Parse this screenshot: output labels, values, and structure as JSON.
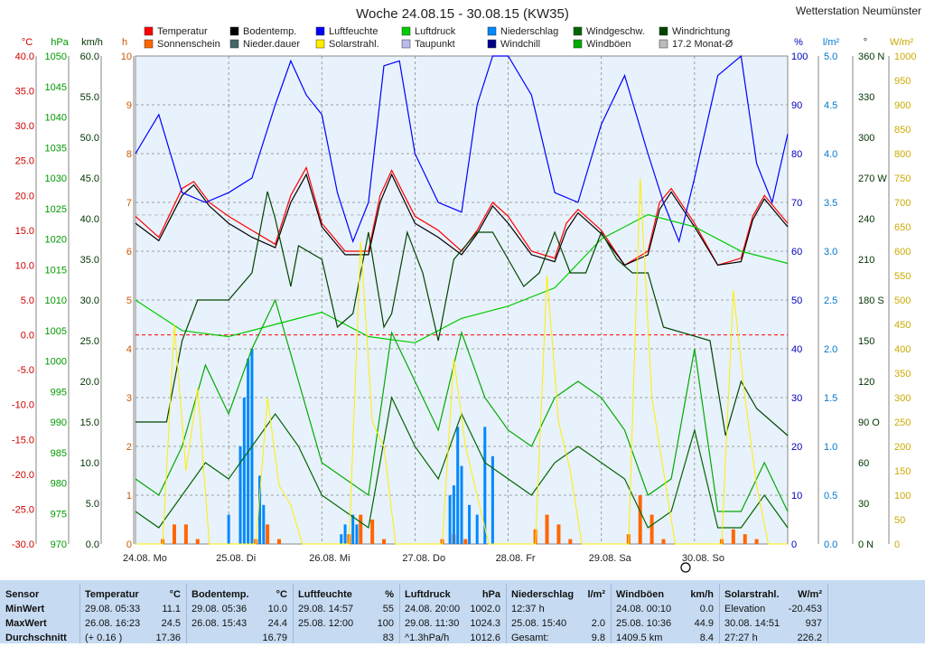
{
  "title": "Woche 24.08.15 - 30.08.15 (KW35)",
  "station": "Wetterstation Neumünster",
  "legend": [
    {
      "label": "Temperatur",
      "color": "#ff0000"
    },
    {
      "label": "Bodentemp.",
      "color": "#000000"
    },
    {
      "label": "Luftfeuchte",
      "color": "#0000ff"
    },
    {
      "label": "Luftdruck",
      "color": "#00cc00"
    },
    {
      "label": "Niederschlag",
      "color": "#0088ff"
    },
    {
      "label": "Windgeschw.",
      "color": "#006600"
    },
    {
      "label": "Windrichtung",
      "color": "#004400"
    },
    {
      "label": "Sonnenschein",
      "color": "#ff6600"
    },
    {
      "label": "Nieder.dauer",
      "color": "#446666"
    },
    {
      "label": "Solarstrahl.",
      "color": "#ffee00"
    },
    {
      "label": "Taupunkt",
      "color": "#bbbbee"
    },
    {
      "label": "Windchill",
      "color": "#000088"
    },
    {
      "label": "Windböen",
      "color": "#00aa00"
    },
    {
      "label": "17.2 Monat-Ø",
      "color": "#bbbbbb"
    }
  ],
  "axes": {
    "temp": {
      "unit": "°C",
      "ticks": [
        "40.0",
        "35.0",
        "30.0",
        "25.0",
        "20.0",
        "15.0",
        "10.0",
        "5.0",
        "0.0",
        "-5.0",
        "-10.0",
        "-15.0",
        "-20.0",
        "-25.0",
        "-30.0"
      ],
      "color": "#d00000"
    },
    "press": {
      "unit": "hPa",
      "ticks": [
        "1050",
        "1045",
        "1040",
        "1035",
        "1030",
        "1025",
        "1020",
        "1015",
        "1010",
        "1005",
        "1000",
        "995",
        "990",
        "985",
        "980",
        "975",
        "970"
      ],
      "color": "#009900"
    },
    "wind": {
      "unit": "km/h",
      "ticks": [
        "60.0",
        "55.0",
        "50.0",
        "45.0",
        "40.0",
        "35.0",
        "30.0",
        "25.0",
        "20.0",
        "15.0",
        "10.0",
        "5.0",
        "0.0"
      ],
      "color": "#003300"
    },
    "hours": {
      "unit": "h",
      "ticks": [
        "10",
        "9",
        "8",
        "7",
        "6",
        "5",
        "4",
        "3",
        "2",
        "1",
        "0"
      ],
      "color": "#cc5500"
    },
    "hum": {
      "unit": "%",
      "ticks": [
        "100",
        "90",
        "80",
        "70",
        "60",
        "50",
        "40",
        "30",
        "20",
        "10",
        "0"
      ],
      "color": "#0000bb"
    },
    "rain": {
      "unit": "l/m²",
      "ticks": [
        "5.0",
        "4.5",
        "4.0",
        "3.5",
        "3.0",
        "2.5",
        "2.0",
        "1.5",
        "1.0",
        "0.5",
        "0.0"
      ],
      "color": "#0077cc"
    },
    "dir": {
      "unit": "°",
      "ticks": [
        "360 N",
        "330",
        "300",
        "270 W",
        "240",
        "210",
        "180 S",
        "150",
        "120",
        "90 O",
        "60",
        "30",
        "0 N"
      ],
      "color": "#003300"
    },
    "solar": {
      "unit": "W/m²",
      "ticks": [
        "1000",
        "950",
        "900",
        "850",
        "800",
        "750",
        "700",
        "650",
        "600",
        "550",
        "500",
        "450",
        "400",
        "350",
        "300",
        "250",
        "200",
        "150",
        "100",
        "50",
        "0"
      ],
      "color": "#ccaa00"
    }
  },
  "x_labels": [
    "24.08. Mo",
    "25.08. Di",
    "26.08. Mi",
    "27.08. Do",
    "28.08. Fr",
    "29.08. Sa",
    "30.08. So"
  ],
  "chart_data": {
    "type": "line",
    "title": "Woche 24.08.15 - 30.08.15 (KW35)",
    "x_unit": "hours since 24.08. 00:00",
    "xlim": [
      0,
      168
    ],
    "series": [
      {
        "name": "Temperatur",
        "axis": "°C",
        "x": [
          0,
          6,
          12,
          15,
          19,
          24,
          30,
          36,
          40,
          44,
          48,
          54,
          60,
          63,
          66,
          72,
          78,
          84,
          88,
          92,
          96,
          102,
          108,
          111,
          114,
          120,
          126,
          132,
          135,
          138,
          144,
          150,
          156,
          159,
          162,
          168
        ],
        "y": [
          17,
          14,
          21,
          22,
          19,
          17,
          15,
          13,
          20,
          24,
          16,
          12,
          12,
          20,
          23.6,
          17,
          15,
          12,
          15,
          19,
          17,
          12,
          11,
          16,
          18,
          15,
          10,
          12,
          19,
          21,
          16,
          10,
          11,
          17,
          20,
          16
        ]
      },
      {
        "name": "Bodentemp.",
        "axis": "°C",
        "x": [
          0,
          6,
          12,
          15,
          19,
          24,
          30,
          36,
          40,
          44,
          48,
          54,
          60,
          63,
          66,
          72,
          78,
          84,
          88,
          92,
          96,
          102,
          108,
          111,
          114,
          120,
          126,
          132,
          135,
          138,
          144,
          150,
          156,
          159,
          162,
          168
        ],
        "y": [
          16,
          13.5,
          20,
          21.5,
          18.5,
          16,
          14,
          12.5,
          19,
          23,
          15.5,
          11.5,
          11.5,
          19,
          23,
          16,
          14,
          11.5,
          14.5,
          18.5,
          16,
          11.5,
          10.5,
          15,
          17.5,
          14.5,
          10,
          11.5,
          18,
          20.5,
          15.5,
          10,
          10.5,
          16.5,
          19.5,
          15.5
        ]
      },
      {
        "name": "Luftfeuchte",
        "axis": "%",
        "x": [
          0,
          6,
          12,
          18,
          24,
          30,
          36,
          40,
          44,
          48,
          52,
          56,
          60,
          64,
          68,
          72,
          78,
          84,
          88,
          92,
          96,
          102,
          108,
          114,
          120,
          126,
          132,
          136,
          140,
          144,
          150,
          156,
          160,
          164,
          168
        ],
        "y": [
          80,
          88,
          72,
          70,
          72,
          75,
          90,
          99,
          92,
          88,
          72,
          62,
          70,
          98,
          99,
          80,
          70,
          68,
          90,
          100,
          100,
          92,
          72,
          70,
          86,
          96,
          80,
          70,
          62,
          75,
          96,
          100,
          78,
          70,
          84
        ]
      },
      {
        "name": "Luftdruck",
        "axis": "hPa",
        "x": [
          0,
          12,
          24,
          36,
          48,
          60,
          72,
          84,
          96,
          108,
          120,
          126,
          132,
          144,
          156,
          168
        ],
        "y": [
          1010,
          1005,
          1004,
          1006,
          1008,
          1004,
          1003,
          1007,
          1009,
          1012,
          1020,
          1022,
          1024,
          1022,
          1018,
          1016
        ]
      },
      {
        "name": "Windgeschw.",
        "axis": "km/h",
        "x": [
          0,
          6,
          12,
          18,
          24,
          30,
          36,
          42,
          48,
          54,
          60,
          66,
          72,
          78,
          84,
          90,
          96,
          102,
          108,
          114,
          120,
          126,
          132,
          138,
          144,
          150,
          156,
          162,
          168
        ],
        "y": [
          4,
          2,
          6,
          10,
          8,
          12,
          16,
          12,
          6,
          4,
          2,
          18,
          12,
          8,
          16,
          10,
          8,
          6,
          10,
          12,
          10,
          8,
          2,
          4,
          14,
          2,
          2,
          6,
          2
        ]
      },
      {
        "name": "Windböen",
        "axis": "km/h",
        "x": [
          0,
          6,
          12,
          18,
          24,
          30,
          36,
          42,
          48,
          54,
          60,
          66,
          72,
          78,
          84,
          90,
          96,
          102,
          108,
          114,
          120,
          126,
          132,
          138,
          144,
          150,
          156,
          162,
          168
        ],
        "y": [
          8,
          6,
          12,
          22,
          16,
          24,
          30,
          20,
          10,
          8,
          6,
          26,
          20,
          14,
          26,
          18,
          14,
          12,
          18,
          20,
          18,
          14,
          6,
          8,
          24,
          4,
          4,
          10,
          4
        ]
      },
      {
        "name": "Windrichtung",
        "axis": "°",
        "x": [
          0,
          8,
          12,
          16,
          20,
          24,
          30,
          34,
          36,
          40,
          42,
          48,
          52,
          56,
          60,
          64,
          66,
          70,
          74,
          78,
          82,
          88,
          92,
          96,
          100,
          104,
          108,
          112,
          116,
          120,
          124,
          128,
          132,
          136,
          148,
          152,
          156,
          160,
          168
        ],
        "y": [
          90,
          90,
          150,
          180,
          180,
          180,
          200,
          260,
          240,
          190,
          220,
          210,
          160,
          170,
          230,
          160,
          170,
          230,
          200,
          150,
          210,
          230,
          230,
          210,
          190,
          200,
          230,
          200,
          200,
          230,
          210,
          200,
          200,
          160,
          150,
          80,
          120,
          100,
          80
        ]
      },
      {
        "name": "Solarstrahl.",
        "axis": "W/m²",
        "x": [
          0,
          7,
          10,
          13,
          16,
          19,
          24,
          31,
          34,
          37,
          40,
          43,
          48,
          55,
          58,
          61,
          64,
          67,
          72,
          79,
          82,
          85,
          88,
          91,
          96,
          103,
          106,
          109,
          112,
          115,
          120,
          127,
          130,
          133,
          136,
          139,
          144,
          151,
          154,
          157,
          160,
          163,
          168
        ],
        "y": [
          0,
          0,
          450,
          150,
          320,
          0,
          0,
          0,
          300,
          120,
          80,
          0,
          0,
          0,
          620,
          250,
          200,
          0,
          0,
          0,
          380,
          200,
          100,
          0,
          0,
          0,
          550,
          250,
          150,
          0,
          0,
          0,
          750,
          300,
          150,
          0,
          0,
          0,
          520,
          300,
          120,
          0,
          0
        ]
      },
      {
        "name": "Sonnenschein",
        "axis": "h",
        "x": [
          7,
          10,
          13,
          16,
          31,
          34,
          37,
          55,
          58,
          61,
          64,
          79,
          82,
          85,
          103,
          106,
          109,
          112,
          127,
          130,
          133,
          136,
          151,
          154,
          157,
          160
        ],
        "y": [
          0.1,
          0.4,
          0.4,
          0.1,
          0.1,
          0.4,
          0.1,
          0.2,
          0.6,
          0.5,
          0.1,
          0.1,
          0.2,
          0.1,
          0.3,
          0.6,
          0.4,
          0.1,
          0.2,
          1.0,
          0.6,
          0.1,
          0.1,
          0.3,
          0.2,
          0.1
        ]
      },
      {
        "name": "Niederschlag",
        "axis": "l/m²",
        "x": [
          24,
          27,
          28,
          29,
          30,
          32,
          33,
          53,
          54,
          56,
          57,
          81,
          82,
          83,
          84,
          86,
          88,
          90,
          92
        ],
        "y": [
          0.3,
          1.0,
          1.5,
          1.9,
          2.0,
          0.7,
          0.4,
          0.1,
          0.2,
          0.3,
          0.2,
          0.5,
          0.6,
          1.2,
          0.8,
          0.4,
          0.3,
          1.2,
          0.9
        ]
      }
    ],
    "reference_lines": [
      {
        "axis": "°C",
        "value": 0,
        "color": "#ff0000"
      },
      {
        "axis": "°C",
        "value": 17.2,
        "color": "#bbbbbb"
      }
    ]
  },
  "table": {
    "rows": [
      "Sensor",
      "MinWert",
      "MaxWert",
      "Durchschnitt"
    ],
    "cols": [
      {
        "head": "Temperatur",
        "unit": "°C",
        "r1": [
          "29.08.  05:33",
          "11.1"
        ],
        "r2": [
          "26.08.  16:23",
          "24.5"
        ],
        "r3": [
          "(+ 0.16 )",
          "17.36"
        ]
      },
      {
        "head": "Bodentemp.",
        "unit": "°C",
        "r1": [
          "29.08.  05:36",
          "10.0"
        ],
        "r2": [
          "26.08.  15:43",
          "24.4"
        ],
        "r3": [
          "",
          "16.79"
        ]
      },
      {
        "head": "Luftfeuchte",
        "unit": "%",
        "r1": [
          "29.08.  14:57",
          "55"
        ],
        "r2": [
          "25.08.  12:00",
          "100"
        ],
        "r3": [
          "",
          "83"
        ]
      },
      {
        "head": "Luftdruck",
        "unit": "hPa",
        "r1": [
          "24.08.  20:00",
          "1002.0"
        ],
        "r2": [
          "29.08.  11:30",
          "1024.3"
        ],
        "r3": [
          "^1.3hPa/h",
          "1012.6"
        ]
      },
      {
        "head": "Niederschlag",
        "unit": "l/m²",
        "r1": [
          "12:37 h",
          ""
        ],
        "r2": [
          "25.08.  15:40",
          "2.0"
        ],
        "r3": [
          "Gesamt:",
          "9.8"
        ]
      },
      {
        "head": "Windböen",
        "unit": "km/h",
        "r1": [
          "24.08.  00:10",
          "0.0"
        ],
        "r2": [
          "25.08.  10:36",
          "44.9"
        ],
        "r3": [
          "1409.5 km",
          "8.4"
        ]
      },
      {
        "head": "Solarstrahl.",
        "unit": "W/m²",
        "r1": [
          "Elevation",
          "-20.453"
        ],
        "r2": [
          "30.08.  14:51",
          "937"
        ],
        "r3": [
          "27:27 h",
          "226.2"
        ]
      }
    ]
  }
}
